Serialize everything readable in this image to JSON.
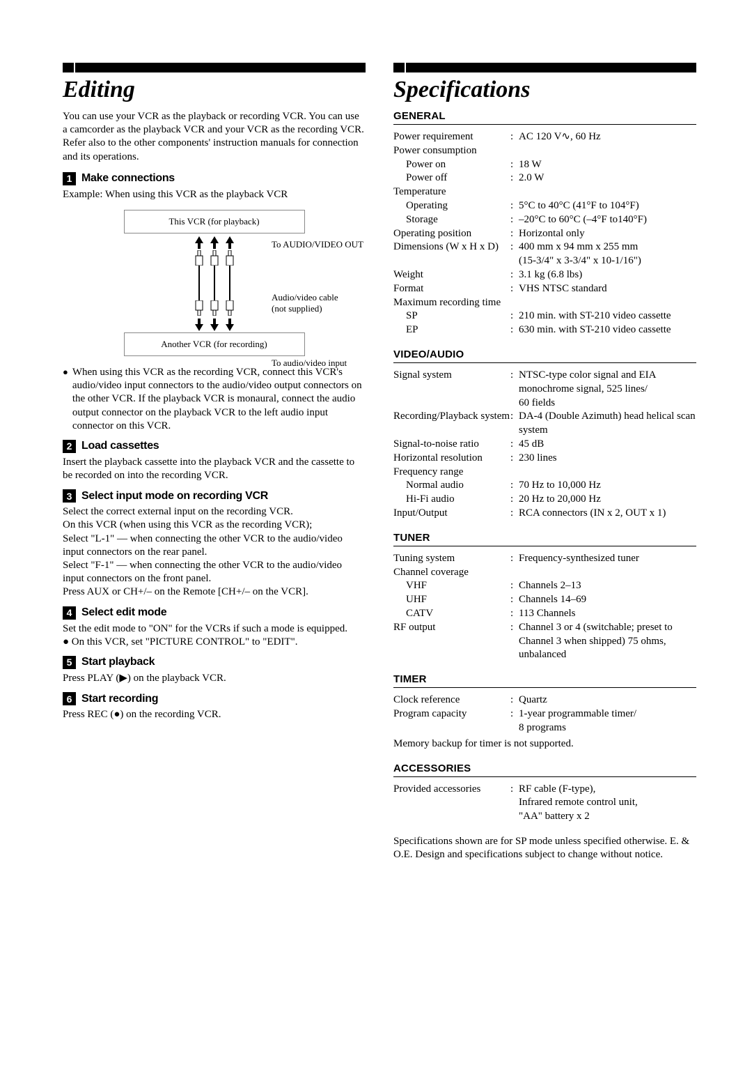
{
  "left": {
    "title": "Editing",
    "intro": "You can use your VCR as the playback or recording VCR. You can use a camcorder as the playback VCR and your VCR as the recording VCR. Refer also to the other components' instruction manuals for connection and its operations.",
    "steps": [
      {
        "num": "1",
        "title": "Make connections",
        "body": "Example: When using this VCR as the playback VCR"
      },
      {
        "num": "2",
        "title": "Load cassettes",
        "body": "Insert the playback cassette into the playback VCR and the cassette to be recorded on into the recording VCR."
      },
      {
        "num": "3",
        "title": "Select input mode on recording VCR",
        "body": "Select the correct external input on the recording VCR.\nOn this VCR (when using this VCR as the recording VCR);\nSelect \"L-1\" — when connecting the other VCR to the audio/video input connectors on the rear panel.\nSelect \"F-1\" — when connecting the other VCR to the audio/video input connectors on the front panel.\nPress AUX or CH+/– on the Remote [CH+/– on the VCR]."
      },
      {
        "num": "4",
        "title": "Select edit mode",
        "body": "Set the edit mode to \"ON\" for the VCRs if such a mode is equipped.\n● On this VCR, set \"PICTURE CONTROL\" to \"EDIT\"."
      },
      {
        "num": "5",
        "title": "Start playback",
        "body": "Press PLAY (▶) on the playback VCR."
      },
      {
        "num": "6",
        "title": "Start recording",
        "body": "Press REC (●) on the recording VCR."
      }
    ],
    "diagram": {
      "top_box": "This VCR (for playback)",
      "to_out": "To AUDIO/VIDEO OUT",
      "cable_label": "Audio/video cable\n(not supplied)",
      "to_in": "To audio/video input",
      "bottom_box": "Another VCR (for recording)"
    },
    "bullet1": "When using this VCR as the recording VCR, connect this VCR's audio/video input connectors to the audio/video output connectors on the other VCR. If the playback VCR is monaural, connect the audio output connector on the playback VCR to the left audio input connector on this VCR."
  },
  "right": {
    "title": "Specifications",
    "sections": [
      {
        "heading": "GENERAL",
        "rows": [
          {
            "label": "Power requirement",
            "val": "AC 120 V∿, 60 Hz",
            "colon": true
          },
          {
            "label": "Power consumption",
            "val": "",
            "colon": false
          },
          {
            "label": "Power on",
            "val": "18 W",
            "indent": true,
            "colon": true
          },
          {
            "label": "Power off",
            "val": "2.0 W",
            "indent": true,
            "colon": true
          },
          {
            "label": "Temperature",
            "val": "",
            "colon": false
          },
          {
            "label": "Operating",
            "val": "5°C to 40°C (41°F to 104°F)",
            "indent": true,
            "colon": true
          },
          {
            "label": "Storage",
            "val": "–20°C to 60°C (–4°F to140°F)",
            "indent": true,
            "colon": true
          },
          {
            "label": "Operating position",
            "val": "Horizontal only",
            "colon": true
          },
          {
            "label": "Dimensions (W x H x D)",
            "val": "400 mm x 94 mm x 255 mm\n(15-3/4\" x 3-3/4\" x 10-1/16\")",
            "colon": true
          },
          {
            "label": "Weight",
            "val": "3.1 kg (6.8 lbs)",
            "colon": true
          },
          {
            "label": "Format",
            "val": "VHS NTSC standard",
            "colon": true
          },
          {
            "label": "Maximum recording time",
            "val": "",
            "colon": false
          },
          {
            "label": "SP",
            "val": "210 min. with ST-210 video cassette",
            "indent": true,
            "colon": true
          },
          {
            "label": "EP",
            "val": "630 min. with ST-210 video cassette",
            "indent": true,
            "colon": true
          }
        ]
      },
      {
        "heading": "VIDEO/AUDIO",
        "rows": [
          {
            "label": "Signal system",
            "val": "NTSC-type color signal and EIA monochrome signal, 525 lines/\n60 fields",
            "colon": true
          },
          {
            "label": "Recording/Playback system",
            "val": "DA-4 (Double Azimuth) head helical scan system",
            "colon": true
          },
          {
            "label": "Signal-to-noise ratio",
            "val": "45 dB",
            "colon": true
          },
          {
            "label": "Horizontal resolution",
            "val": "230 lines",
            "colon": true
          },
          {
            "label": "Frequency range",
            "val": "",
            "colon": false
          },
          {
            "label": "Normal audio",
            "val": "70 Hz to 10,000 Hz",
            "indent": true,
            "colon": true
          },
          {
            "label": "Hi-Fi audio",
            "val": "20 Hz to 20,000 Hz",
            "indent": true,
            "colon": true
          },
          {
            "label": "Input/Output",
            "val": "RCA connectors (IN x 2, OUT x 1)",
            "colon": true
          }
        ]
      },
      {
        "heading": "TUNER",
        "rows": [
          {
            "label": "Tuning system",
            "val": "Frequency-synthesized tuner",
            "colon": true
          },
          {
            "label": "Channel coverage",
            "val": "",
            "colon": false
          },
          {
            "label": "VHF",
            "val": "Channels 2–13",
            "indent": true,
            "colon": true
          },
          {
            "label": "UHF",
            "val": "Channels 14–69",
            "indent": true,
            "colon": true
          },
          {
            "label": "CATV",
            "val": "113 Channels",
            "indent": true,
            "colon": true
          },
          {
            "label": "RF output",
            "val": "Channel 3 or 4 (switchable; preset to Channel 3 when shipped) 75 ohms, unbalanced",
            "colon": true
          }
        ]
      },
      {
        "heading": "TIMER",
        "rows": [
          {
            "label": "Clock reference",
            "val": "Quartz",
            "colon": true
          },
          {
            "label": "Program capacity",
            "val": "1-year programmable timer/\n8 programs",
            "colon": true
          }
        ],
        "note": "Memory backup for timer is not supported."
      },
      {
        "heading": "ACCESSORIES",
        "rows": [
          {
            "label": "Provided accessories",
            "val": "RF cable (F-type),\nInfrared remote control unit,\n\"AA\" battery x 2",
            "colon": true
          }
        ]
      }
    ],
    "footnote": "Specifications shown are for SP mode unless specified otherwise. E. & O.E. Design and specifications subject to change without notice."
  }
}
